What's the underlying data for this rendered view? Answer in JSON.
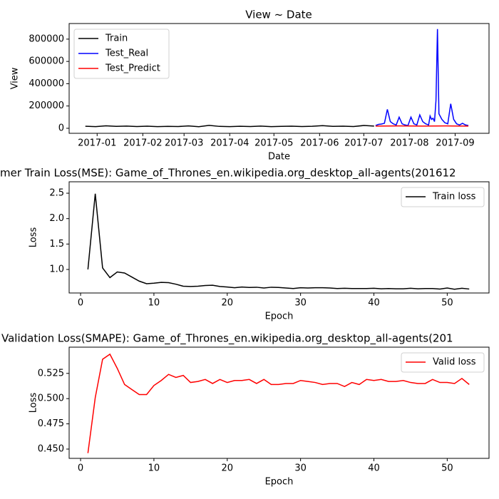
{
  "chart_data": [
    {
      "type": "line",
      "title": "View ~ Date",
      "x_label": "Date",
      "y_label": "View",
      "legend": "upper left",
      "grid": false,
      "xlim": [
        "2016-12-13",
        "2017-09-24"
      ],
      "xticks": [
        {
          "value": "2017-01-01",
          "label": "2017-01"
        },
        {
          "value": "2017-02-01",
          "label": "2017-02"
        },
        {
          "value": "2017-03-01",
          "label": "2017-03"
        },
        {
          "value": "2017-04-01",
          "label": "2017-04"
        },
        {
          "value": "2017-05-01",
          "label": "2017-05"
        },
        {
          "value": "2017-06-01",
          "label": "2017-06"
        },
        {
          "value": "2017-07-01",
          "label": "2017-07"
        },
        {
          "value": "2017-08-01",
          "label": "2017-08"
        },
        {
          "value": "2017-09-01",
          "label": "2017-09"
        }
      ],
      "ylim": [
        -45000,
        940000
      ],
      "yticks": [
        0,
        200000,
        400000,
        600000,
        800000
      ],
      "series": [
        {
          "name": "Train",
          "color": "#000000",
          "x": [
            "2016-12-24",
            "2016-12-31",
            "2017-01-07",
            "2017-01-14",
            "2017-01-21",
            "2017-01-28",
            "2017-02-04",
            "2017-02-11",
            "2017-02-18",
            "2017-02-25",
            "2017-03-04",
            "2017-03-11",
            "2017-03-18",
            "2017-03-25",
            "2017-04-01",
            "2017-04-08",
            "2017-04-15",
            "2017-04-22",
            "2017-04-29",
            "2017-05-06",
            "2017-05-13",
            "2017-05-20",
            "2017-05-27",
            "2017-06-03",
            "2017-06-10",
            "2017-06-17",
            "2017-06-24",
            "2017-07-01",
            "2017-07-08"
          ],
          "values": [
            18000,
            15000,
            22000,
            17000,
            20000,
            16000,
            19000,
            15000,
            17000,
            16000,
            21000,
            14000,
            26000,
            17000,
            15000,
            18000,
            16000,
            20000,
            15000,
            17000,
            19000,
            16000,
            18000,
            24000,
            17000,
            19000,
            16000,
            25000,
            20000
          ]
        },
        {
          "name": "Test_Real",
          "color": "#0000ff",
          "x": [
            "2017-07-09",
            "2017-07-11",
            "2017-07-13",
            "2017-07-15",
            "2017-07-17",
            "2017-07-19",
            "2017-07-21",
            "2017-07-23",
            "2017-07-25",
            "2017-07-27",
            "2017-07-29",
            "2017-07-31",
            "2017-08-02",
            "2017-08-04",
            "2017-08-06",
            "2017-08-08",
            "2017-08-10",
            "2017-08-12",
            "2017-08-14",
            "2017-08-15",
            "2017-08-16",
            "2017-08-17",
            "2017-08-18",
            "2017-08-19",
            "2017-08-20",
            "2017-08-21",
            "2017-08-23",
            "2017-08-25",
            "2017-08-27",
            "2017-08-29",
            "2017-08-31",
            "2017-09-02",
            "2017-09-04",
            "2017-09-06",
            "2017-09-08",
            "2017-09-10"
          ],
          "values": [
            25000,
            35000,
            38000,
            45000,
            170000,
            60000,
            40000,
            30000,
            100000,
            40000,
            30000,
            25000,
            100000,
            40000,
            30000,
            120000,
            60000,
            40000,
            30000,
            110000,
            80000,
            90000,
            60000,
            250000,
            890000,
            130000,
            80000,
            50000,
            40000,
            220000,
            80000,
            40000,
            30000,
            45000,
            30000,
            25000
          ]
        },
        {
          "name": "Test_Predict",
          "color": "#ff0000",
          "x": [
            "2017-07-09",
            "2017-07-25",
            "2017-08-10",
            "2017-08-26",
            "2017-09-10"
          ],
          "values": [
            20000,
            21000,
            20000,
            21000,
            20000
          ]
        }
      ]
    },
    {
      "type": "line",
      "title": "mer Train Loss(MSE): Game_of_Thrones_en.wikipedia.org_desktop_all-agents(201612",
      "x_label": "Epoch",
      "y_label": "Loss",
      "legend": "upper right",
      "grid": false,
      "xlim": [
        -1.56,
        55.7
      ],
      "xticks": [
        0,
        10,
        20,
        30,
        40,
        50
      ],
      "ylim": [
        0.537,
        2.725
      ],
      "yticks": [
        {
          "value": 1,
          "label": "1.0"
        },
        {
          "value": 1.5,
          "label": "1.5"
        },
        {
          "value": 2,
          "label": "2.0"
        },
        {
          "value": 2.5,
          "label": "2.5"
        }
      ],
      "series": [
        {
          "name": "Train loss",
          "color": "#000000",
          "x": [
            1,
            2,
            3,
            4,
            5,
            6,
            7,
            8,
            9,
            10,
            11,
            12,
            13,
            14,
            15,
            16,
            17,
            18,
            19,
            20,
            21,
            22,
            23,
            24,
            25,
            26,
            27,
            28,
            29,
            30,
            31,
            32,
            33,
            34,
            35,
            36,
            37,
            38,
            39,
            40,
            41,
            42,
            43,
            44,
            45,
            46,
            47,
            48,
            49,
            50,
            51,
            52,
            53
          ],
          "values": [
            1.0,
            2.49,
            1.03,
            0.84,
            0.95,
            0.93,
            0.85,
            0.77,
            0.72,
            0.73,
            0.745,
            0.74,
            0.71,
            0.67,
            0.665,
            0.67,
            0.685,
            0.69,
            0.665,
            0.655,
            0.64,
            0.655,
            0.645,
            0.65,
            0.635,
            0.65,
            0.645,
            0.635,
            0.625,
            0.64,
            0.635,
            0.64,
            0.64,
            0.635,
            0.625,
            0.63,
            0.625,
            0.625,
            0.625,
            0.63,
            0.62,
            0.625,
            0.62,
            0.62,
            0.63,
            0.62,
            0.625,
            0.625,
            0.615,
            0.635,
            0.61,
            0.63,
            0.615
          ]
        }
      ]
    },
    {
      "type": "line",
      "title": "Validation Loss(SMAPE): Game_of_Thrones_en.wikipedia.org_desktop_all-agents(201",
      "x_label": "Epoch",
      "y_label": "Loss",
      "legend": "upper right",
      "grid": false,
      "xlim": [
        -1.56,
        55.7
      ],
      "xticks": [
        0,
        10,
        20,
        30,
        40,
        50
      ],
      "ylim": [
        0.4408,
        0.551
      ],
      "yticks": [
        {
          "value": 0.45,
          "label": "0.450"
        },
        {
          "value": 0.475,
          "label": "0.475"
        },
        {
          "value": 0.5,
          "label": "0.500"
        },
        {
          "value": 0.525,
          "label": "0.525"
        }
      ],
      "series": [
        {
          "name": "Valid loss",
          "color": "#ff0000",
          "x": [
            1,
            2,
            3,
            4,
            5,
            6,
            7,
            8,
            9,
            10,
            11,
            12,
            13,
            14,
            15,
            16,
            17,
            18,
            19,
            20,
            21,
            22,
            23,
            24,
            25,
            26,
            27,
            28,
            29,
            30,
            31,
            32,
            33,
            34,
            35,
            36,
            37,
            38,
            39,
            40,
            41,
            42,
            43,
            44,
            45,
            46,
            47,
            48,
            49,
            50,
            51,
            52,
            53
          ],
          "values": [
            0.446,
            0.501,
            0.539,
            0.544,
            0.53,
            0.514,
            0.509,
            0.504,
            0.504,
            0.513,
            0.518,
            0.524,
            0.521,
            0.523,
            0.516,
            0.517,
            0.519,
            0.515,
            0.519,
            0.516,
            0.518,
            0.518,
            0.519,
            0.515,
            0.519,
            0.514,
            0.514,
            0.515,
            0.515,
            0.518,
            0.517,
            0.516,
            0.514,
            0.515,
            0.515,
            0.512,
            0.516,
            0.514,
            0.519,
            0.518,
            0.519,
            0.517,
            0.517,
            0.518,
            0.516,
            0.515,
            0.515,
            0.519,
            0.516,
            0.516,
            0.515,
            0.52,
            0.514
          ]
        }
      ]
    }
  ]
}
